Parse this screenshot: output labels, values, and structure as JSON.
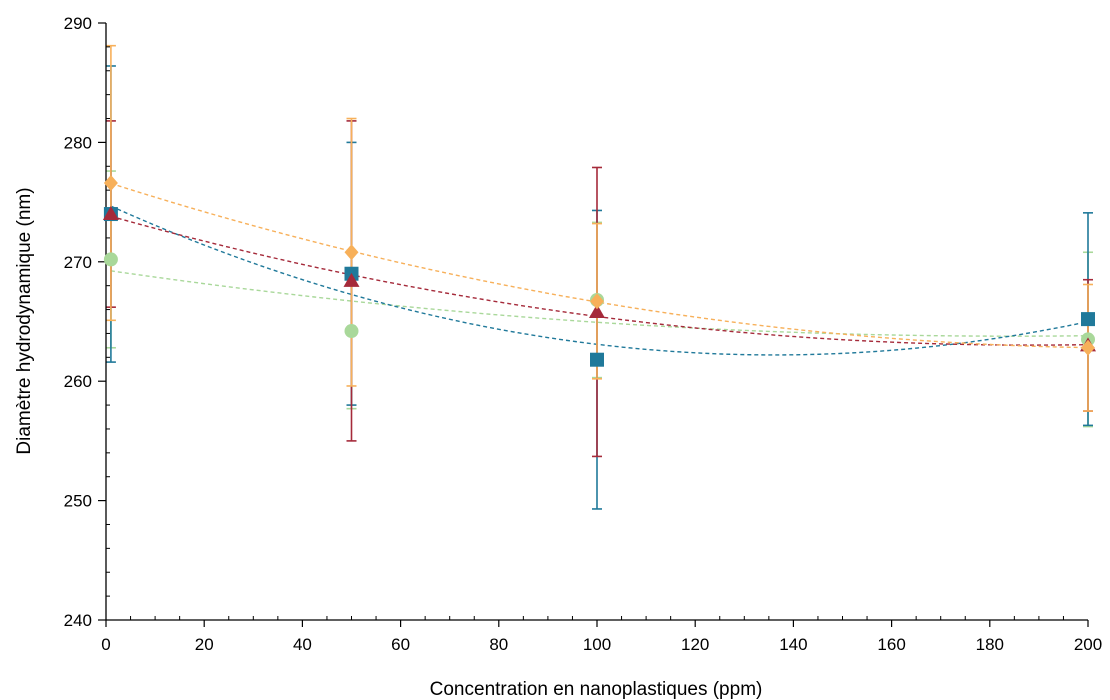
{
  "chart_data": {
    "type": "scatter",
    "title": "",
    "xlabel": "Concentration en nanoplastiques (ppm)",
    "ylabel": "Diamètre hydrodynamique (nm)",
    "xlim": [
      0,
      200
    ],
    "ylim": [
      240,
      290
    ],
    "xticks": [
      0,
      20,
      40,
      60,
      80,
      100,
      120,
      140,
      160,
      180,
      200
    ],
    "yticks": [
      240,
      250,
      260,
      270,
      280,
      290
    ],
    "x_minor_step": 5,
    "y_minor_step": 2,
    "grid": false,
    "legend": "none",
    "trendline": "polynomial order 2 (dashed)",
    "series": [
      {
        "marker": "circle",
        "color": "#a9d89a",
        "x": [
          1,
          50,
          100,
          200
        ],
        "y": [
          270.2,
          264.2,
          266.8,
          263.5
        ],
        "error": [
          7.4,
          6.5,
          6.5,
          7.3
        ]
      },
      {
        "marker": "square",
        "color": "#20799a",
        "x": [
          1,
          50,
          100,
          200
        ],
        "y": [
          274,
          269,
          261.8,
          265.2
        ],
        "error": [
          12.4,
          11.0,
          12.5,
          8.9
        ]
      },
      {
        "marker": "triangle",
        "color": "#a52a3a",
        "x": [
          1,
          50,
          100,
          200
        ],
        "y": [
          274,
          268.4,
          265.8,
          263
        ],
        "error": [
          7.8,
          13.4,
          12.1,
          5.5
        ]
      },
      {
        "marker": "diamond",
        "color": "#f7b05a",
        "x": [
          1,
          50,
          100,
          200
        ],
        "y": [
          276.6,
          270.8,
          266.7,
          262.8
        ],
        "error": [
          11.5,
          11.2,
          6.5,
          5.3
        ]
      }
    ]
  }
}
